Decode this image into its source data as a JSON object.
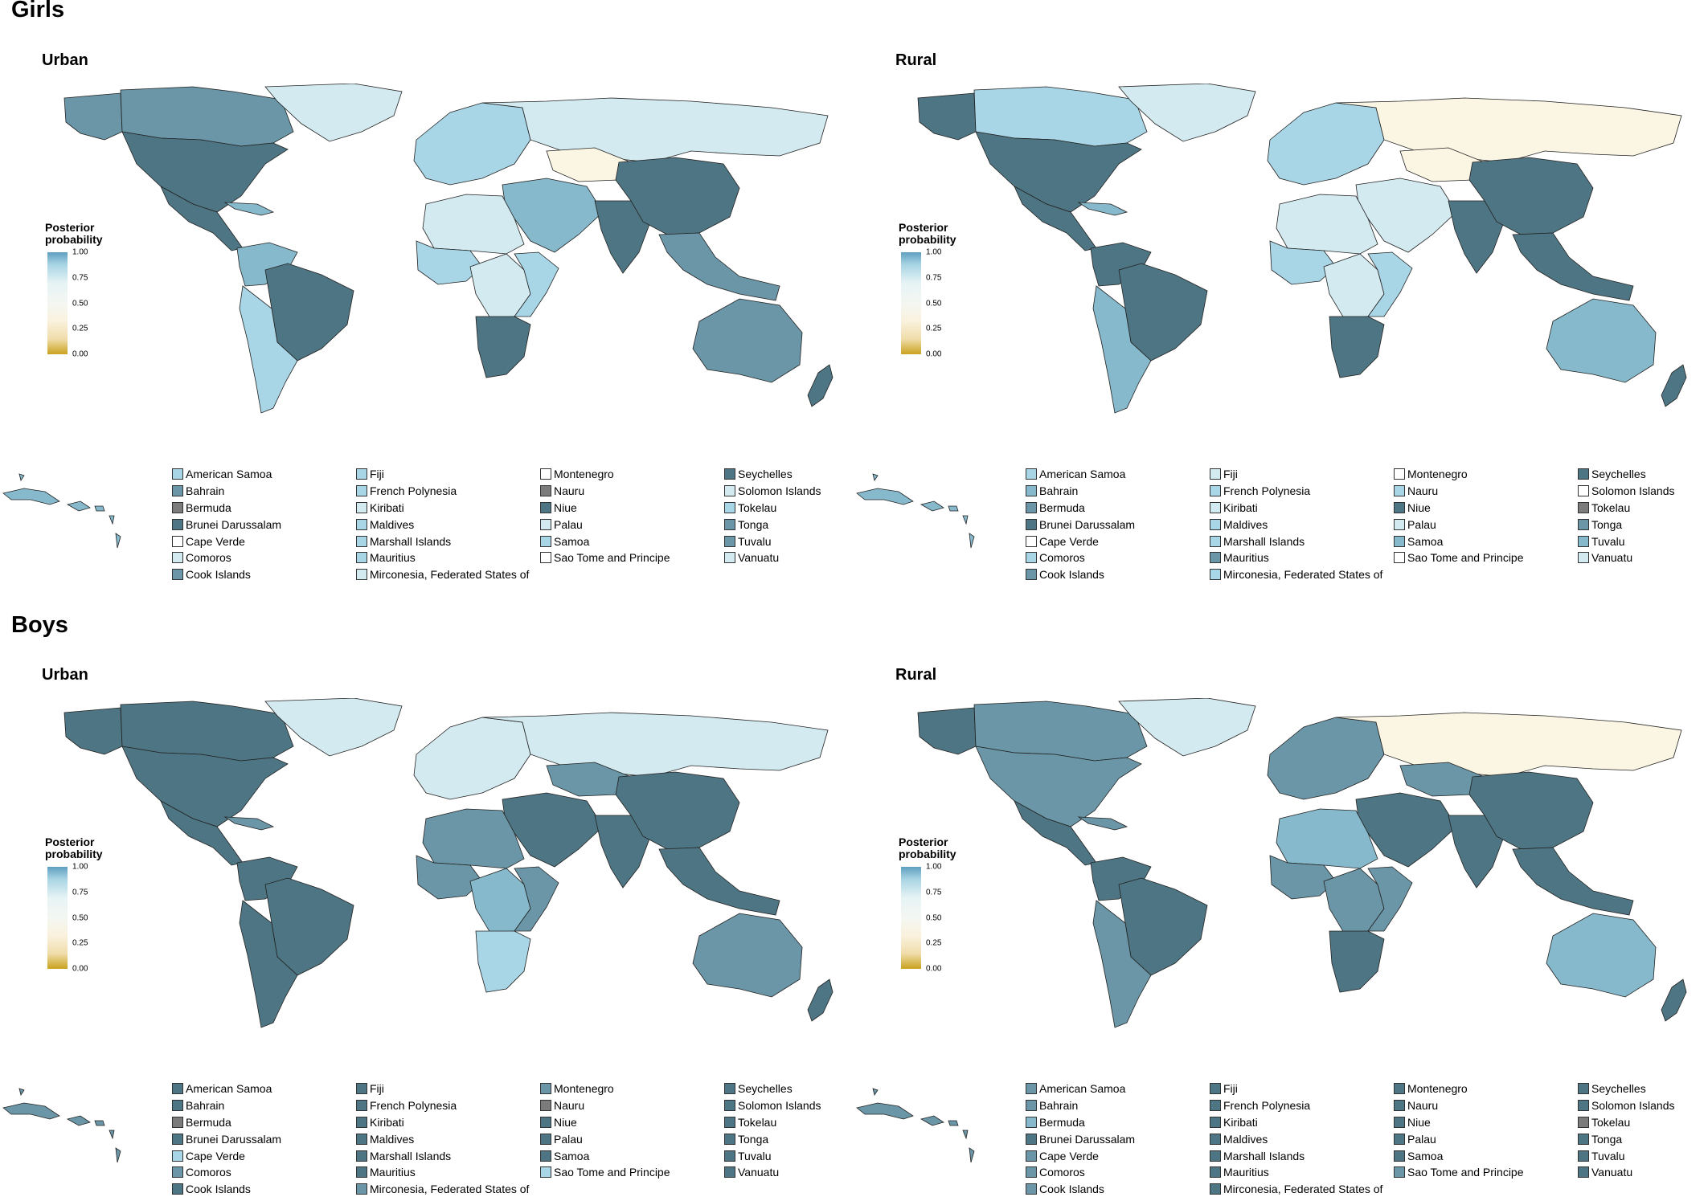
{
  "colors": {
    "dark": "#4e7583",
    "mid": "#6a96a7",
    "light_mid": "#86b9cc",
    "light": "#a9d6e6",
    "pale": "#d3eaf1",
    "white": "#ffffff",
    "grey": "#7b7b7b",
    "cream": "#fbf5e3",
    "ocean": "#ffffff"
  },
  "colorbar": {
    "title_line1": "Posterior",
    "title_line2": "probability",
    "ticks": [
      "1.00",
      "0.75",
      "0.50",
      "0.25",
      "0.00"
    ],
    "gradient": [
      "#5f9fc0",
      "#e6f3f5",
      "#f4f7f2",
      "#faf1dd",
      "#c9a21e"
    ]
  },
  "sections": [
    {
      "title": "Girls",
      "panels": [
        {
          "title": "Urban",
          "region_colors": {
            "north_america": "dark",
            "canada": "mid",
            "alaska": "mid",
            "greenland": "pale",
            "central_america": "dark",
            "south_america_north": "light_mid",
            "brazil": "dark",
            "south_america_south": "light",
            "europe": "light",
            "russia": "pale",
            "kazakhstan": "cream",
            "middle_east": "light_mid",
            "north_africa": "pale",
            "west_africa": "light",
            "central_africa": "pale",
            "east_africa": "light",
            "southern_africa": "dark",
            "india": "dark",
            "china": "dark",
            "southeast_asia": "mid",
            "australia": "mid",
            "new_zealand": "dark",
            "caribbean": "light_mid"
          },
          "legend": [
            {
              "label": "American Samoa",
              "color": "light"
            },
            {
              "label": "Bahrain",
              "color": "mid"
            },
            {
              "label": "Bermuda",
              "color": "grey"
            },
            {
              "label": "Brunei Darussalam",
              "color": "dark"
            },
            {
              "label": "Cape Verde",
              "color": "white"
            },
            {
              "label": "Comoros",
              "color": "pale"
            },
            {
              "label": "Cook Islands",
              "color": "mid"
            },
            {
              "label": "Fiji",
              "color": "light"
            },
            {
              "label": "French Polynesia",
              "color": "light"
            },
            {
              "label": "Kiribati",
              "color": "pale"
            },
            {
              "label": "Maldives",
              "color": "light"
            },
            {
              "label": "Marshall Islands",
              "color": "light"
            },
            {
              "label": "Mauritius",
              "color": "light"
            },
            {
              "label": "Mirconesia, Federated States of",
              "color": "pale"
            },
            {
              "label": "Montenegro",
              "color": "white"
            },
            {
              "label": "Nauru",
              "color": "grey"
            },
            {
              "label": "Niue",
              "color": "dark"
            },
            {
              "label": "Palau",
              "color": "pale"
            },
            {
              "label": "Samoa",
              "color": "light"
            },
            {
              "label": "Sao Tome and Principe",
              "color": "white"
            },
            {
              "label": "Seychelles",
              "color": "dark"
            },
            {
              "label": "Solomon Islands",
              "color": "pale"
            },
            {
              "label": "Tokelau",
              "color": "light"
            },
            {
              "label": "Tonga",
              "color": "mid"
            },
            {
              "label": "Tuvalu",
              "color": "mid"
            },
            {
              "label": "Vanuatu",
              "color": "pale"
            }
          ]
        },
        {
          "title": "Rural",
          "region_colors": {
            "north_america": "dark",
            "canada": "light",
            "alaska": "dark",
            "greenland": "pale",
            "central_america": "dark",
            "south_america_north": "dark",
            "brazil": "dark",
            "south_america_south": "light_mid",
            "europe": "light",
            "russia": "cream",
            "kazakhstan": "cream",
            "middle_east": "pale",
            "north_africa": "pale",
            "west_africa": "light",
            "central_africa": "pale",
            "east_africa": "light",
            "southern_africa": "dark",
            "india": "dark",
            "china": "dark",
            "southeast_asia": "dark",
            "australia": "light_mid",
            "new_zealand": "dark",
            "caribbean": "light_mid"
          },
          "legend": [
            {
              "label": "American Samoa",
              "color": "light"
            },
            {
              "label": "Bahrain",
              "color": "light_mid"
            },
            {
              "label": "Bermuda",
              "color": "mid"
            },
            {
              "label": "Brunei Darussalam",
              "color": "dark"
            },
            {
              "label": "Cape Verde",
              "color": "white"
            },
            {
              "label": "Comoros",
              "color": "light"
            },
            {
              "label": "Cook Islands",
              "color": "mid"
            },
            {
              "label": "Fiji",
              "color": "pale"
            },
            {
              "label": "French Polynesia",
              "color": "light"
            },
            {
              "label": "Kiribati",
              "color": "pale"
            },
            {
              "label": "Maldives",
              "color": "light"
            },
            {
              "label": "Marshall Islands",
              "color": "light"
            },
            {
              "label": "Mauritius",
              "color": "mid"
            },
            {
              "label": "Mirconesia, Federated States of",
              "color": "light"
            },
            {
              "label": "Montenegro",
              "color": "white"
            },
            {
              "label": "Nauru",
              "color": "light"
            },
            {
              "label": "Niue",
              "color": "dark"
            },
            {
              "label": "Palau",
              "color": "pale"
            },
            {
              "label": "Samoa",
              "color": "light_mid"
            },
            {
              "label": "Sao Tome and Principe",
              "color": "white"
            },
            {
              "label": "Seychelles",
              "color": "dark"
            },
            {
              "label": "Solomon Islands",
              "color": "white"
            },
            {
              "label": "Tokelau",
              "color": "grey"
            },
            {
              "label": "Tonga",
              "color": "mid"
            },
            {
              "label": "Tuvalu",
              "color": "light_mid"
            },
            {
              "label": "Vanuatu",
              "color": "pale"
            }
          ]
        }
      ]
    },
    {
      "title": "Boys",
      "panels": [
        {
          "title": "Urban",
          "region_colors": {
            "north_america": "dark",
            "canada": "dark",
            "alaska": "dark",
            "greenland": "pale",
            "central_america": "dark",
            "south_america_north": "dark",
            "brazil": "dark",
            "south_america_south": "dark",
            "europe": "pale",
            "russia": "pale",
            "kazakhstan": "mid",
            "middle_east": "dark",
            "north_africa": "mid",
            "west_africa": "mid",
            "central_africa": "light_mid",
            "east_africa": "mid",
            "southern_africa": "light",
            "india": "dark",
            "china": "dark",
            "southeast_asia": "dark",
            "australia": "mid",
            "new_zealand": "dark",
            "caribbean": "mid"
          },
          "legend": [
            {
              "label": "American Samoa",
              "color": "dark"
            },
            {
              "label": "Bahrain",
              "color": "dark"
            },
            {
              "label": "Bermuda",
              "color": "grey"
            },
            {
              "label": "Brunei Darussalam",
              "color": "dark"
            },
            {
              "label": "Cape Verde",
              "color": "light"
            },
            {
              "label": "Comoros",
              "color": "mid"
            },
            {
              "label": "Cook Islands",
              "color": "dark"
            },
            {
              "label": "Fiji",
              "color": "dark"
            },
            {
              "label": "French Polynesia",
              "color": "dark"
            },
            {
              "label": "Kiribati",
              "color": "dark"
            },
            {
              "label": "Maldives",
              "color": "dark"
            },
            {
              "label": "Marshall Islands",
              "color": "dark"
            },
            {
              "label": "Mauritius",
              "color": "dark"
            },
            {
              "label": "Mirconesia, Federated States of",
              "color": "mid"
            },
            {
              "label": "Montenegro",
              "color": "mid"
            },
            {
              "label": "Nauru",
              "color": "grey"
            },
            {
              "label": "Niue",
              "color": "dark"
            },
            {
              "label": "Palau",
              "color": "dark"
            },
            {
              "label": "Samoa",
              "color": "dark"
            },
            {
              "label": "Sao Tome and Principe",
              "color": "light"
            },
            {
              "label": "Seychelles",
              "color": "dark"
            },
            {
              "label": "Solomon Islands",
              "color": "dark"
            },
            {
              "label": "Tokelau",
              "color": "dark"
            },
            {
              "label": "Tonga",
              "color": "dark"
            },
            {
              "label": "Tuvalu",
              "color": "dark"
            },
            {
              "label": "Vanuatu",
              "color": "dark"
            }
          ]
        },
        {
          "title": "Rural",
          "region_colors": {
            "north_america": "mid",
            "canada": "mid",
            "alaska": "dark",
            "greenland": "pale",
            "central_america": "dark",
            "south_america_north": "dark",
            "brazil": "dark",
            "south_america_south": "mid",
            "europe": "mid",
            "russia": "cream",
            "kazakhstan": "mid",
            "middle_east": "dark",
            "north_africa": "light_mid",
            "west_africa": "mid",
            "central_africa": "mid",
            "east_africa": "mid",
            "southern_africa": "dark",
            "india": "dark",
            "china": "dark",
            "southeast_asia": "dark",
            "australia": "light_mid",
            "new_zealand": "dark",
            "caribbean": "mid"
          },
          "legend": [
            {
              "label": "American Samoa",
              "color": "mid"
            },
            {
              "label": "Bahrain",
              "color": "mid"
            },
            {
              "label": "Bermuda",
              "color": "light_mid"
            },
            {
              "label": "Brunei Darussalam",
              "color": "dark"
            },
            {
              "label": "Cape Verde",
              "color": "mid"
            },
            {
              "label": "Comoros",
              "color": "mid"
            },
            {
              "label": "Cook Islands",
              "color": "mid"
            },
            {
              "label": "Fiji",
              "color": "dark"
            },
            {
              "label": "French Polynesia",
              "color": "dark"
            },
            {
              "label": "Kiribati",
              "color": "dark"
            },
            {
              "label": "Maldives",
              "color": "dark"
            },
            {
              "label": "Marshall Islands",
              "color": "dark"
            },
            {
              "label": "Mauritius",
              "color": "dark"
            },
            {
              "label": "Mirconesia, Federated States of",
              "color": "dark"
            },
            {
              "label": "Montenegro",
              "color": "dark"
            },
            {
              "label": "Nauru",
              "color": "dark"
            },
            {
              "label": "Niue",
              "color": "dark"
            },
            {
              "label": "Palau",
              "color": "dark"
            },
            {
              "label": "Samoa",
              "color": "dark"
            },
            {
              "label": "Sao Tome and Principe",
              "color": "mid"
            },
            {
              "label": "Seychelles",
              "color": "dark"
            },
            {
              "label": "Solomon Islands",
              "color": "dark"
            },
            {
              "label": "Tokelau",
              "color": "grey"
            },
            {
              "label": "Tonga",
              "color": "dark"
            },
            {
              "label": "Tuvalu",
              "color": "dark"
            },
            {
              "label": "Vanuatu",
              "color": "dark"
            }
          ]
        }
      ]
    }
  ]
}
